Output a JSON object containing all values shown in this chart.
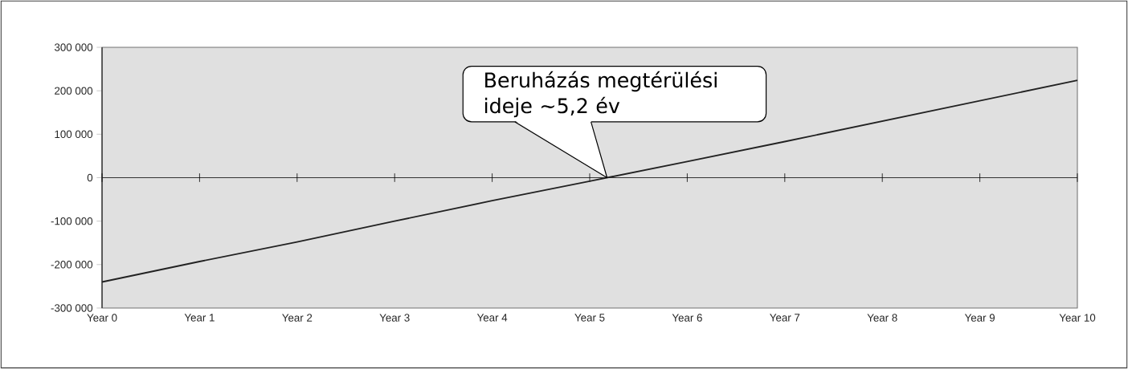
{
  "chart_data": {
    "type": "line",
    "categories": [
      "Year 0",
      "Year 1",
      "Year 2",
      "Year 3",
      "Year 4",
      "Year 5",
      "Year 6",
      "Year 7",
      "Year 8",
      "Year 9",
      "Year 10"
    ],
    "values": [
      -240000,
      -193000,
      -148000,
      -100000,
      -53000,
      -8000,
      37000,
      83000,
      130000,
      177000,
      224000
    ],
    "color": "#222222",
    "ylim": [
      -300000,
      300000
    ],
    "yticks": [
      {
        "value": -300000,
        "label": "-300 000"
      },
      {
        "value": -200000,
        "label": "-200 000"
      },
      {
        "value": -100000,
        "label": "-100 000"
      },
      0,
      {
        "value": 100000,
        "label": "100 000"
      },
      {
        "value": 200000,
        "label": "200 000"
      },
      {
        "value": 300000,
        "label": "300 000"
      }
    ],
    "ref_lines": [
      {
        "axis": "y",
        "value": 0,
        "color": "#333333"
      }
    ],
    "annotations": [
      "Beruházás megtérülési ideje ~5,2 év"
    ],
    "grid": false
  }
}
